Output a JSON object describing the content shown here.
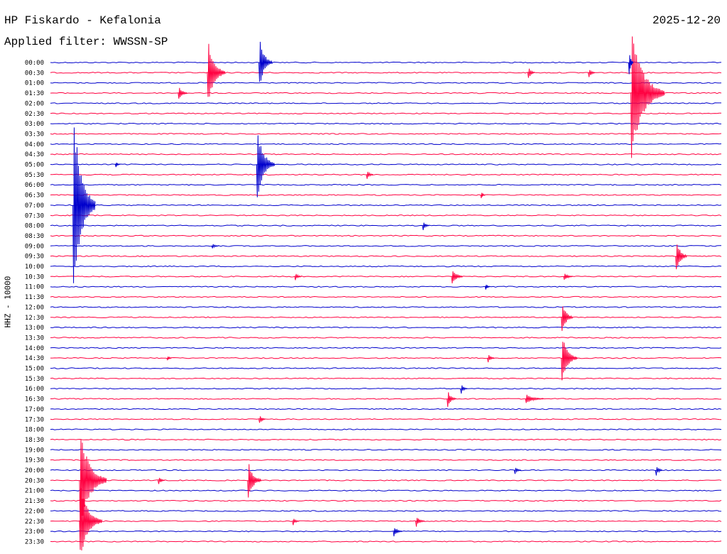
{
  "header": {
    "station": "HP Fiskardo - Kefalonia",
    "filter": "Applied filter: WWSSN-SP",
    "date": "2025-12-20",
    "channel": "HHZ - 10000"
  },
  "chart_data": {
    "type": "helicorder",
    "title": "HP Fiskardo - Kefalonia",
    "subtitle": "Applied filter: WWSSN-SP",
    "date": "2025-12-20",
    "ylabel": "HHZ - 10000",
    "line_colors": [
      "#0000cc",
      "#ff0040"
    ],
    "time_labels": [
      "00:00",
      "00:30",
      "01:00",
      "01:30",
      "02:00",
      "02:30",
      "03:00",
      "03:30",
      "04:00",
      "04:30",
      "05:00",
      "05:30",
      "06:00",
      "06:30",
      "07:00",
      "07:30",
      "08:00",
      "08:30",
      "09:00",
      "09:30",
      "10:00",
      "10:30",
      "11:00",
      "11:30",
      "12:00",
      "12:30",
      "13:00",
      "13:30",
      "14:00",
      "14:30",
      "15:00",
      "15:30",
      "16:00",
      "16:30",
      "17:00",
      "17:30",
      "18:00",
      "18:30",
      "19:00",
      "19:30",
      "20:00",
      "20:30",
      "21:00",
      "21:30",
      "22:00",
      "22:30",
      "23:00",
      "23:30"
    ],
    "x_range_minutes": [
      0,
      30
    ],
    "events": [
      {
        "row": 0,
        "minute": 9.3,
        "amp": 45,
        "dur": 0.6
      },
      {
        "row": 1,
        "minute": 7.0,
        "amp": 55,
        "dur": 0.8
      },
      {
        "row": 1,
        "minute": 21.3,
        "amp": 14,
        "dur": 0.3
      },
      {
        "row": 1,
        "minute": 24.0,
        "amp": 10,
        "dur": 0.3
      },
      {
        "row": 3,
        "minute": 5.7,
        "amp": 14,
        "dur": 0.4
      },
      {
        "row": 3,
        "minute": 25.9,
        "amp": 100,
        "dur": 1.5
      },
      {
        "row": 0,
        "minute": 25.8,
        "amp": 30,
        "dur": 0.2
      },
      {
        "row": 10,
        "minute": 9.2,
        "amp": 60,
        "dur": 0.8
      },
      {
        "row": 10,
        "minute": 2.9,
        "amp": 6,
        "dur": 0.2
      },
      {
        "row": 11,
        "minute": 14.1,
        "amp": 9,
        "dur": 0.3
      },
      {
        "row": 14,
        "minute": 1.0,
        "amp": 150,
        "dur": 1.0
      },
      {
        "row": 13,
        "minute": 19.2,
        "amp": 8,
        "dur": 0.2
      },
      {
        "row": 16,
        "minute": 16.6,
        "amp": 10,
        "dur": 0.3
      },
      {
        "row": 18,
        "minute": 7.2,
        "amp": 6,
        "dur": 0.3
      },
      {
        "row": 19,
        "minute": 27.9,
        "amp": 30,
        "dur": 0.5
      },
      {
        "row": 21,
        "minute": 10.9,
        "amp": 9,
        "dur": 0.3
      },
      {
        "row": 21,
        "minute": 17.9,
        "amp": 15,
        "dur": 0.5
      },
      {
        "row": 21,
        "minute": 22.9,
        "amp": 8,
        "dur": 0.4
      },
      {
        "row": 22,
        "minute": 19.4,
        "amp": 7,
        "dur": 0.2
      },
      {
        "row": 25,
        "minute": 22.8,
        "amp": 28,
        "dur": 0.5
      },
      {
        "row": 29,
        "minute": 22.8,
        "amp": 40,
        "dur": 0.7
      },
      {
        "row": 29,
        "minute": 19.5,
        "amp": 10,
        "dur": 0.3
      },
      {
        "row": 29,
        "minute": 5.2,
        "amp": 6,
        "dur": 0.2
      },
      {
        "row": 32,
        "minute": 18.3,
        "amp": 10,
        "dur": 0.3
      },
      {
        "row": 33,
        "minute": 17.7,
        "amp": 15,
        "dur": 0.4
      },
      {
        "row": 33,
        "minute": 21.2,
        "amp": 8,
        "dur": 0.8
      },
      {
        "row": 35,
        "minute": 9.3,
        "amp": 10,
        "dur": 0.3
      },
      {
        "row": 40,
        "minute": 20.7,
        "amp": 8,
        "dur": 0.3
      },
      {
        "row": 40,
        "minute": 27.0,
        "amp": 12,
        "dur": 0.3
      },
      {
        "row": 41,
        "minute": 1.3,
        "amp": 80,
        "dur": 1.2
      },
      {
        "row": 41,
        "minute": 8.8,
        "amp": 32,
        "dur": 0.6
      },
      {
        "row": 41,
        "minute": 4.8,
        "amp": 8,
        "dur": 0.3
      },
      {
        "row": 45,
        "minute": 1.3,
        "amp": 60,
        "dur": 1.0
      },
      {
        "row": 45,
        "minute": 16.3,
        "amp": 10,
        "dur": 0.4
      },
      {
        "row": 45,
        "minute": 10.8,
        "amp": 8,
        "dur": 0.3
      },
      {
        "row": 46,
        "minute": 15.3,
        "amp": 10,
        "dur": 0.4
      }
    ]
  }
}
